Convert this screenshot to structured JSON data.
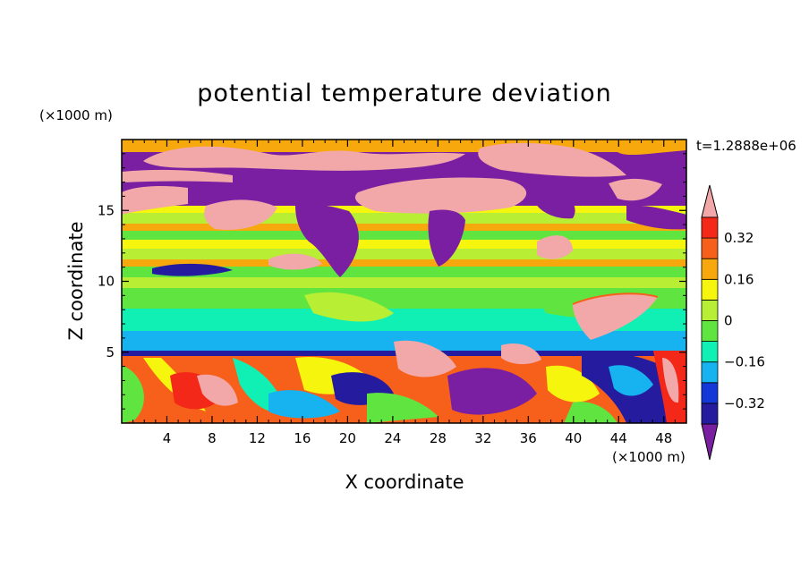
{
  "chart_data": {
    "type": "heatmap",
    "title": "potential temperature deviation",
    "xlabel": "X coordinate",
    "ylabel": "Z coordinate",
    "x_unit": "(×1000 m)",
    "y_unit": "(×1000 m)",
    "time_label": "t=1.2888e+06",
    "xlim": [
      0,
      50
    ],
    "ylim": [
      0,
      20
    ],
    "x_ticks": [
      4,
      8,
      12,
      16,
      20,
      24,
      28,
      32,
      36,
      40,
      44,
      48
    ],
    "y_ticks": [
      5,
      10,
      15
    ],
    "colorbar": {
      "levels": [
        -0.4,
        -0.32,
        -0.24,
        -0.16,
        -0.08,
        0,
        0.08,
        0.16,
        0.24,
        0.32,
        0.4
      ],
      "tick_labels": [
        "0.32",
        "0.16",
        "0",
        "−0.16",
        "−0.32"
      ],
      "tick_values": [
        0.32,
        0.16,
        0,
        -0.16,
        -0.32
      ],
      "colors": [
        "#7a1fa2",
        "#241b9e",
        "#1438d8",
        "#17b3f0",
        "#10f0b4",
        "#60e540",
        "#b8ee34",
        "#f6f50e",
        "#f7a80c",
        "#f7601a",
        "#f32818",
        "#f2a8a8"
      ],
      "extend": "both"
    }
  }
}
